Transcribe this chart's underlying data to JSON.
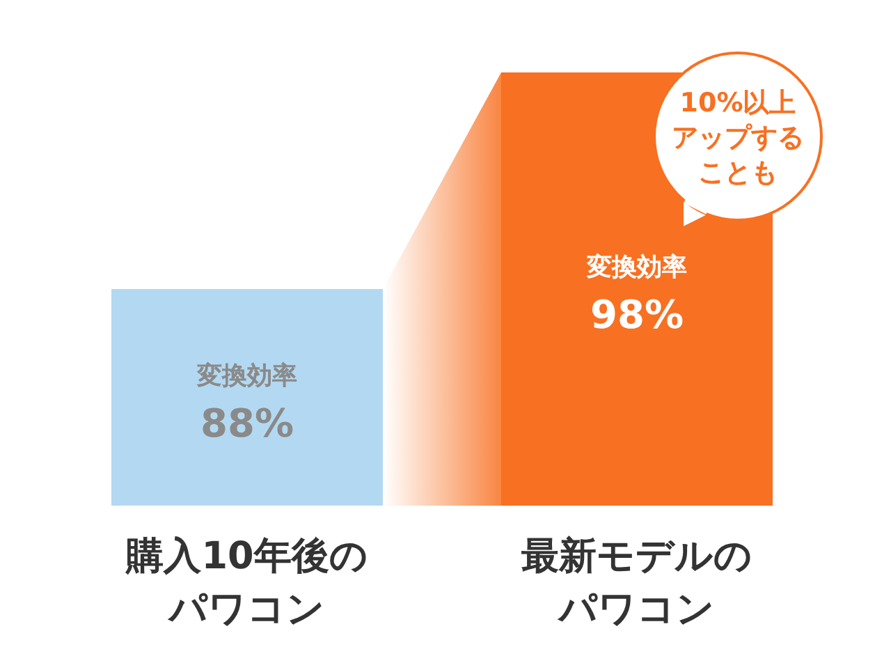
{
  "chart_data": {
    "type": "bar",
    "categories": [
      "購入10年後のパワコン",
      "最新モデルのパワコン"
    ],
    "values": [
      88,
      98
    ],
    "colors": [
      "#b3d9f2",
      "#f87021"
    ],
    "ylim": [
      78,
      98
    ],
    "value_labels": [
      "88%",
      "98%"
    ],
    "annotations": [
      "変換効率",
      "変換効率",
      "10%以上アップすることも"
    ]
  }
}
